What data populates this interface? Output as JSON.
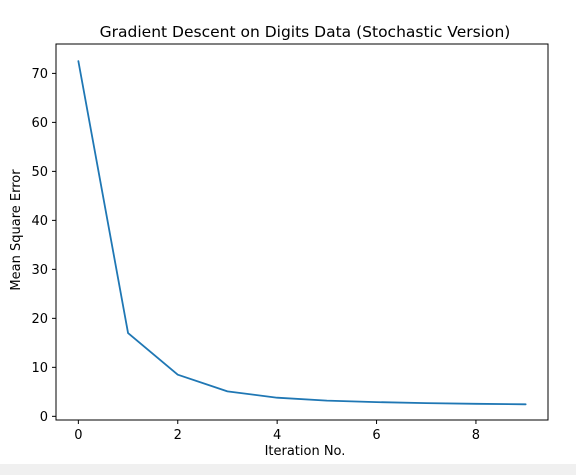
{
  "chart_data": {
    "type": "line",
    "title": "Gradient Descent on Digits Data (Stochastic Version)",
    "xlabel": "Iteration No.",
    "ylabel": "Mean Square Error",
    "x": [
      0,
      1,
      2,
      3,
      4,
      5,
      6,
      7,
      8,
      9
    ],
    "y": [
      72.5,
      17.0,
      8.5,
      5.1,
      3.8,
      3.2,
      2.9,
      2.7,
      2.55,
      2.45
    ],
    "xlim": [
      -0.45,
      9.45
    ],
    "ylim": [
      -0.75,
      76.0
    ],
    "xticks": [
      0,
      2,
      4,
      6,
      8
    ],
    "yticks": [
      0,
      10,
      20,
      30,
      40,
      50,
      60,
      70
    ],
    "grid": false,
    "line_color": "#1f77b4"
  }
}
